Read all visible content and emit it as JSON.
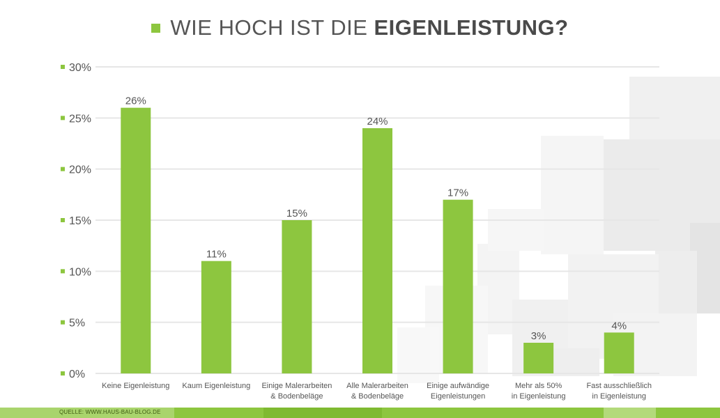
{
  "title": {
    "light": "WIE HOCH IST DIE",
    "bold": "EIGENLEISTUNG?"
  },
  "source": "QUELLE: WWW.HAUS-BAU-BLOG.DE",
  "colors": {
    "bar": "#8dc63f",
    "grid": "#e6e6e6",
    "text": "#555555"
  },
  "chart_data": {
    "type": "bar",
    "title": "WIE HOCH IST DIE EIGENLEISTUNG?",
    "categories": [
      [
        "Keine Eigenleistung"
      ],
      [
        "Kaum Eigenleistung"
      ],
      [
        "Einige Malerarbeiten",
        "& Bodenbeläge"
      ],
      [
        "Alle Malerarbeiten",
        "& Bodenbeläge"
      ],
      [
        "Einige aufwändige",
        "Eigenleistungen"
      ],
      [
        "Mehr als 50%",
        "in Eigenleistung"
      ],
      [
        "Fast ausschließlich",
        "in Eigenleistung"
      ]
    ],
    "values": [
      26,
      11,
      15,
      24,
      17,
      3,
      4
    ],
    "data_labels": [
      "26%",
      "11%",
      "15%",
      "24%",
      "17%",
      "3%",
      "4%"
    ],
    "yticks": [
      "0%",
      "5%",
      "10%",
      "15%",
      "20%",
      "25%",
      "30%"
    ],
    "ylim": [
      0,
      30
    ],
    "grid": true
  }
}
